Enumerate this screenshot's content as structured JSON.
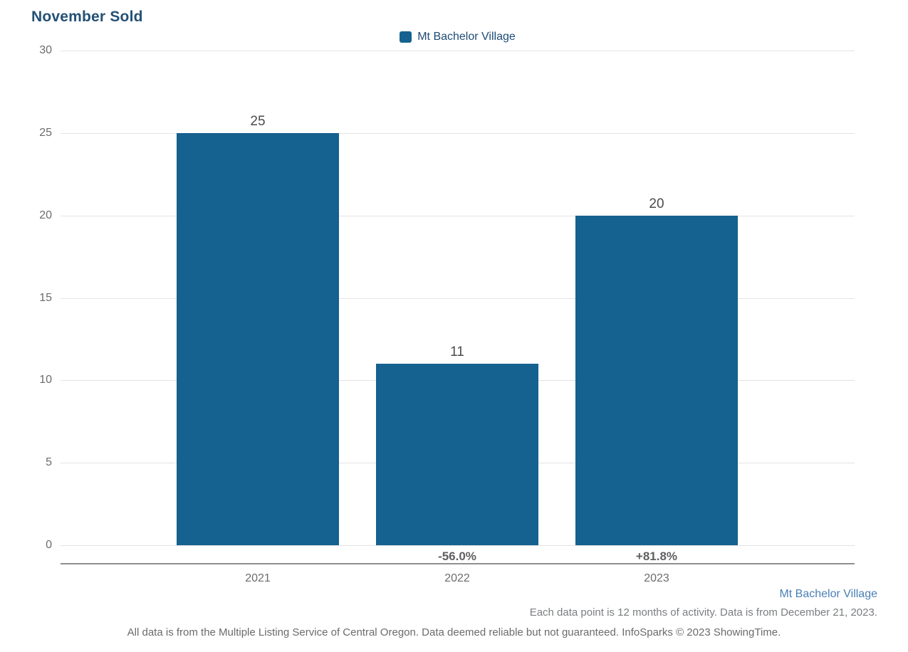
{
  "chart_data": {
    "type": "bar",
    "title": "November Sold",
    "legend_label": "Mt Bachelor Village",
    "legend_position": "top-center",
    "categories": [
      "2021",
      "2022",
      "2023"
    ],
    "series": [
      {
        "name": "Mt Bachelor Village",
        "values": [
          25,
          11,
          20
        ],
        "bar_labels": [
          "25",
          "11",
          "20"
        ],
        "pct_change_labels": [
          "",
          "-56.0%",
          "+81.8%"
        ]
      }
    ],
    "yticks": [
      0,
      5,
      10,
      15,
      20,
      25,
      30
    ],
    "ylim": [
      0,
      30
    ],
    "grid": true,
    "bar_color": "#15618F"
  },
  "colors": {
    "title": "#235176",
    "bar": "#15618F",
    "legend_text": "#1d4b75",
    "footer_series": "#4a7fb5",
    "gridline": "#e3e3e3",
    "axis_line": "#8f9092"
  },
  "footer": {
    "series_name": "Mt Bachelor Village",
    "data_note": "Each data point is 12 months of activity. Data is from December 21, 2023.",
    "disclaimer": "All data is from the Multiple Listing Service of Central Oregon. Data deemed reliable but not guaranteed. InfoSparks © 2023 ShowingTime."
  }
}
